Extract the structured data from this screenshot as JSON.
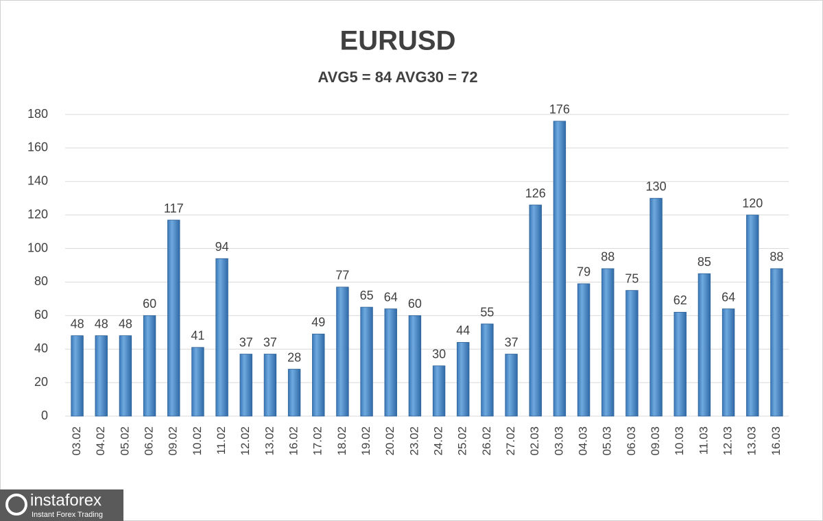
{
  "chart_data": {
    "type": "bar",
    "title": "EURUSD",
    "subtitle": "AVG5 = 84 AVG30 = 72",
    "categories": [
      "03.02",
      "04.02",
      "05.02",
      "06.02",
      "09.02",
      "10.02",
      "11.02",
      "12.02",
      "13.02",
      "16.02",
      "17.02",
      "18.02",
      "19.02",
      "20.02",
      "23.02",
      "24.02",
      "25.02",
      "26.02",
      "27.02",
      "02.03",
      "03.03",
      "04.03",
      "05.03",
      "06.03",
      "09.03",
      "10.03",
      "11.03",
      "12.03",
      "13.03",
      "16.03"
    ],
    "values": [
      48,
      48,
      48,
      60,
      117,
      41,
      94,
      37,
      37,
      28,
      49,
      77,
      65,
      64,
      60,
      30,
      44,
      55,
      37,
      126,
      176,
      79,
      88,
      75,
      130,
      62,
      85,
      64,
      120,
      88
    ],
    "color": "#5b9bd5",
    "ylim": [
      0,
      180
    ],
    "yticks": [
      0,
      20,
      40,
      60,
      80,
      100,
      120,
      140,
      160,
      180
    ],
    "grid": true
  },
  "watermark": {
    "brand": "instaforex",
    "tagline": "Instant Forex Trading"
  }
}
